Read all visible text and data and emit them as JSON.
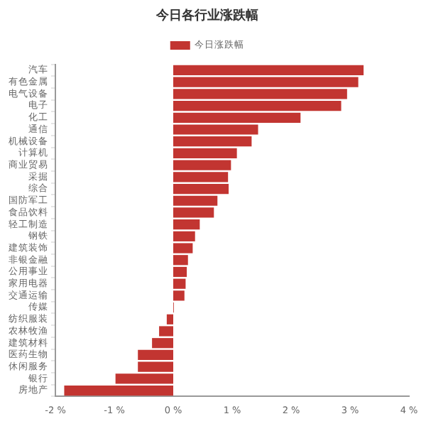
{
  "chart_data": {
    "type": "bar",
    "orientation": "horizontal",
    "title": "今日各行业涨跌幅",
    "legend": "top",
    "categories": [
      "汽车",
      "有色金属",
      "电气设备",
      "电子",
      "化工",
      "通信",
      "机械设备",
      "计算机",
      "商业贸易",
      "采掘",
      "综合",
      "国防军工",
      "食品饮料",
      "轻工制造",
      "钢铁",
      "建筑装饰",
      "非银金融",
      "公用事业",
      "家用电器",
      "交通运输",
      "传媒",
      "纺织服装",
      "农林牧渔",
      "建筑材料",
      "医药生物",
      "休闲服务",
      "银行",
      "房地产"
    ],
    "series": [
      {
        "name": "今日涨跌幅",
        "color": "#c23531",
        "values": [
          3.23,
          3.14,
          2.95,
          2.85,
          2.16,
          1.44,
          1.33,
          1.08,
          0.98,
          0.93,
          0.94,
          0.75,
          0.69,
          0.45,
          0.37,
          0.33,
          0.25,
          0.23,
          0.21,
          0.19,
          0.01,
          -0.11,
          -0.24,
          -0.36,
          -0.6,
          -0.6,
          -0.98,
          -1.85
        ]
      }
    ],
    "xlim": [
      -2,
      4
    ],
    "xticks": [
      {
        "value": -2,
        "label": "-2 %"
      },
      {
        "value": -1,
        "label": "-1 %"
      },
      {
        "value": 0,
        "label": "0 %"
      },
      {
        "value": 1,
        "label": "1 %"
      },
      {
        "value": 2,
        "label": "2 %"
      },
      {
        "value": 3,
        "label": "3 %"
      },
      {
        "value": 4,
        "label": "4 %"
      }
    ],
    "grid": false
  }
}
